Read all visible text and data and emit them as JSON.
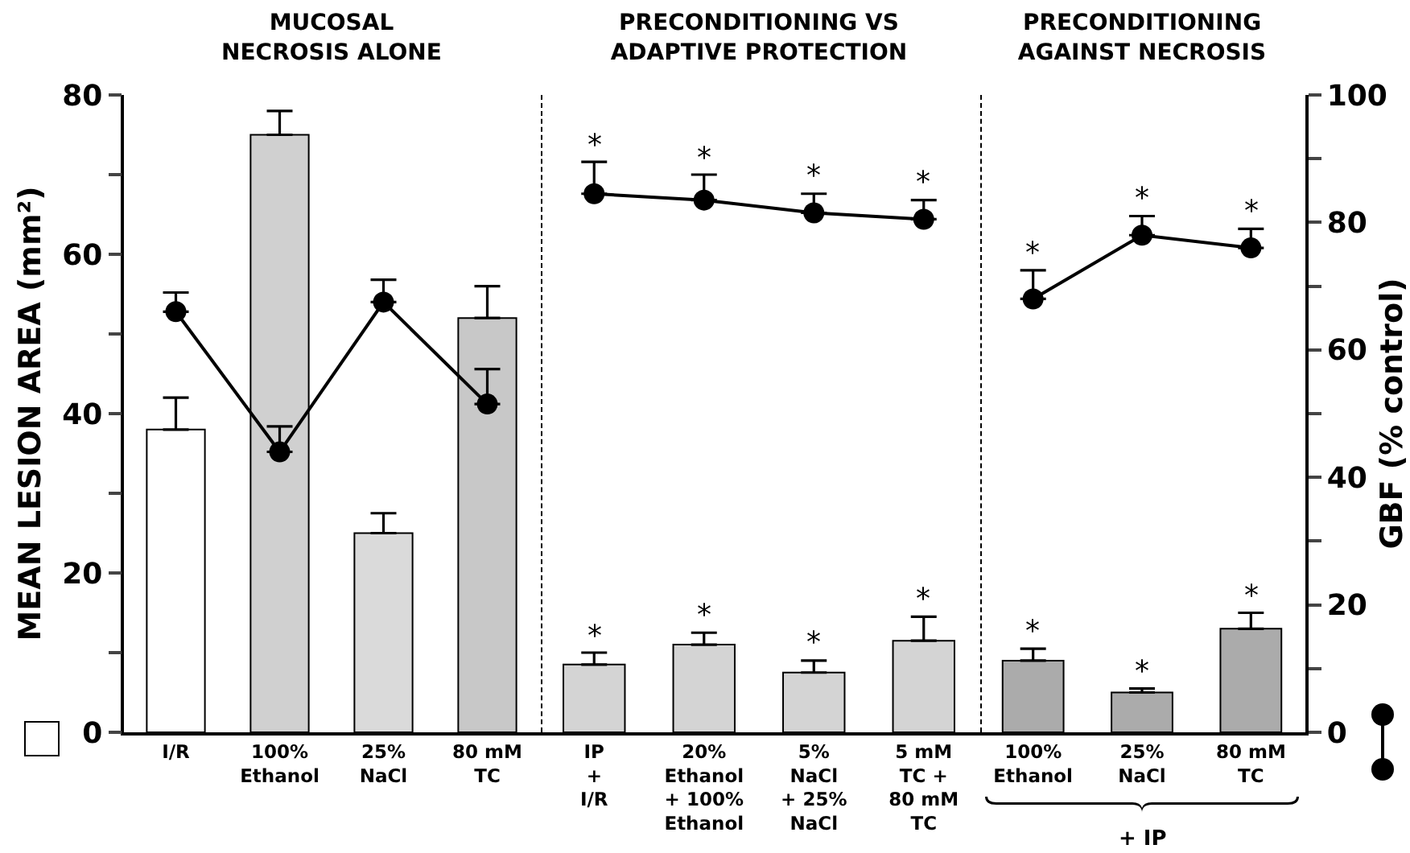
{
  "chart_data": [
    {
      "type": "bar",
      "title": "MUCOSAL\nNECROSIS ALONE",
      "categories": [
        "I/R",
        "100%\nEthanol",
        "25%\nNaCl",
        "80 mM\nTC"
      ],
      "ylabel": "MEAN LESION AREA (mm²)",
      "ylim": [
        0,
        80
      ],
      "yticks": [
        0,
        {
          "value": 10,
          "label": null
        },
        20,
        {
          "value": 30,
          "label": null
        },
        40,
        {
          "value": 50,
          "label": null
        },
        60,
        {
          "value": 70,
          "label": null
        },
        80
      ],
      "y2lim": [
        0,
        100
      ],
      "tick_labels": "xy",
      "grid": false,
      "marker": "circle",
      "line_style": "solid",
      "series": [
        {
          "colors": [
            "#ffffff",
            "#d0d0d0",
            "#dadada",
            "#c8c8c8"
          ],
          "values": [
            38,
            75,
            25,
            52
          ],
          "errors": [
            [
              38,
              42
            ],
            [
              75,
              78
            ],
            [
              25,
              27.5
            ],
            [
              52,
              56
            ]
          ]
        },
        {
          "type": "line",
          "axis": "y2",
          "color": "#000000",
          "values": [
            66,
            44,
            67.5,
            51.5
          ],
          "errors": [
            [
              66,
              69
            ],
            [
              44,
              48
            ],
            [
              67.5,
              71
            ],
            [
              51.5,
              57
            ]
          ]
        }
      ]
    },
    {
      "type": "bar",
      "title": "PRECONDITIONING VS\nADAPTIVE PROTECTION",
      "categories": [
        "IP\n+\nI/R",
        "20%\nEthanol\n+ 100%\nEthanol",
        "5%\nNaCl\n+ 25%\nNaCl",
        "5 mM\nTC +\n80 mM\nTC"
      ],
      "ylim": [
        0,
        80
      ],
      "y2lim": [
        0,
        100
      ],
      "tick_labels": "x",
      "grid": false,
      "marker": "circle",
      "line_style": "solid",
      "series": [
        {
          "colors": [
            "#d4d4d4",
            "#d4d4d4",
            "#d4d4d4",
            "#d4d4d4"
          ],
          "values": [
            8.5,
            11,
            7.5,
            11.5
          ],
          "errors": [
            [
              8.5,
              10
            ],
            [
              11,
              12.5
            ],
            [
              7.5,
              9
            ],
            [
              11.5,
              14.5
            ]
          ],
          "value_labels": [
            "*",
            "*",
            "*",
            "*"
          ]
        },
        {
          "type": "line",
          "axis": "y2",
          "color": "#000000",
          "values": [
            84.5,
            83.5,
            81.5,
            80.5
          ],
          "errors": [
            [
              84.5,
              89.5
            ],
            [
              83.5,
              87.5
            ],
            [
              81.5,
              84.5
            ],
            [
              80.5,
              83.5
            ]
          ],
          "value_labels": [
            "*",
            "*",
            "*",
            "*"
          ]
        }
      ]
    },
    {
      "type": "bar",
      "title": "PRECONDITIONING\nAGAINST NECROSIS",
      "categories": [
        "100%\nEthanol",
        "25%\nNaCl",
        "80 mM\nTC"
      ],
      "y2label": "GBF (% control)",
      "ylim": [
        0,
        80
      ],
      "y2lim": [
        0,
        100
      ],
      "y2ticks": [
        0,
        {
          "value": 10,
          "label": null
        },
        20,
        {
          "value": 30,
          "label": null
        },
        40,
        {
          "value": 50,
          "label": null
        },
        60,
        {
          "value": 70,
          "label": null
        },
        80,
        {
          "value": 90,
          "label": null
        },
        100
      ],
      "tick_labels": "xy2",
      "grid": false,
      "marker": "circle",
      "line_style": "solid",
      "annotations": [
        "+ IP"
      ],
      "series": [
        {
          "colors": [
            "#ababab",
            "#ababab",
            "#ababab"
          ],
          "values": [
            9,
            5,
            13
          ],
          "errors": [
            [
              9,
              10.5
            ],
            [
              5,
              5.5
            ],
            [
              13,
              15
            ]
          ],
          "value_labels": [
            "*",
            "*",
            "*"
          ]
        },
        {
          "type": "line",
          "axis": "y2",
          "color": "#000000",
          "values": [
            68,
            78,
            76
          ],
          "errors": [
            [
              68,
              72.5
            ],
            [
              78,
              81
            ],
            [
              76,
              79
            ]
          ],
          "value_labels": [
            "*",
            "*",
            "*"
          ]
        }
      ]
    }
  ]
}
